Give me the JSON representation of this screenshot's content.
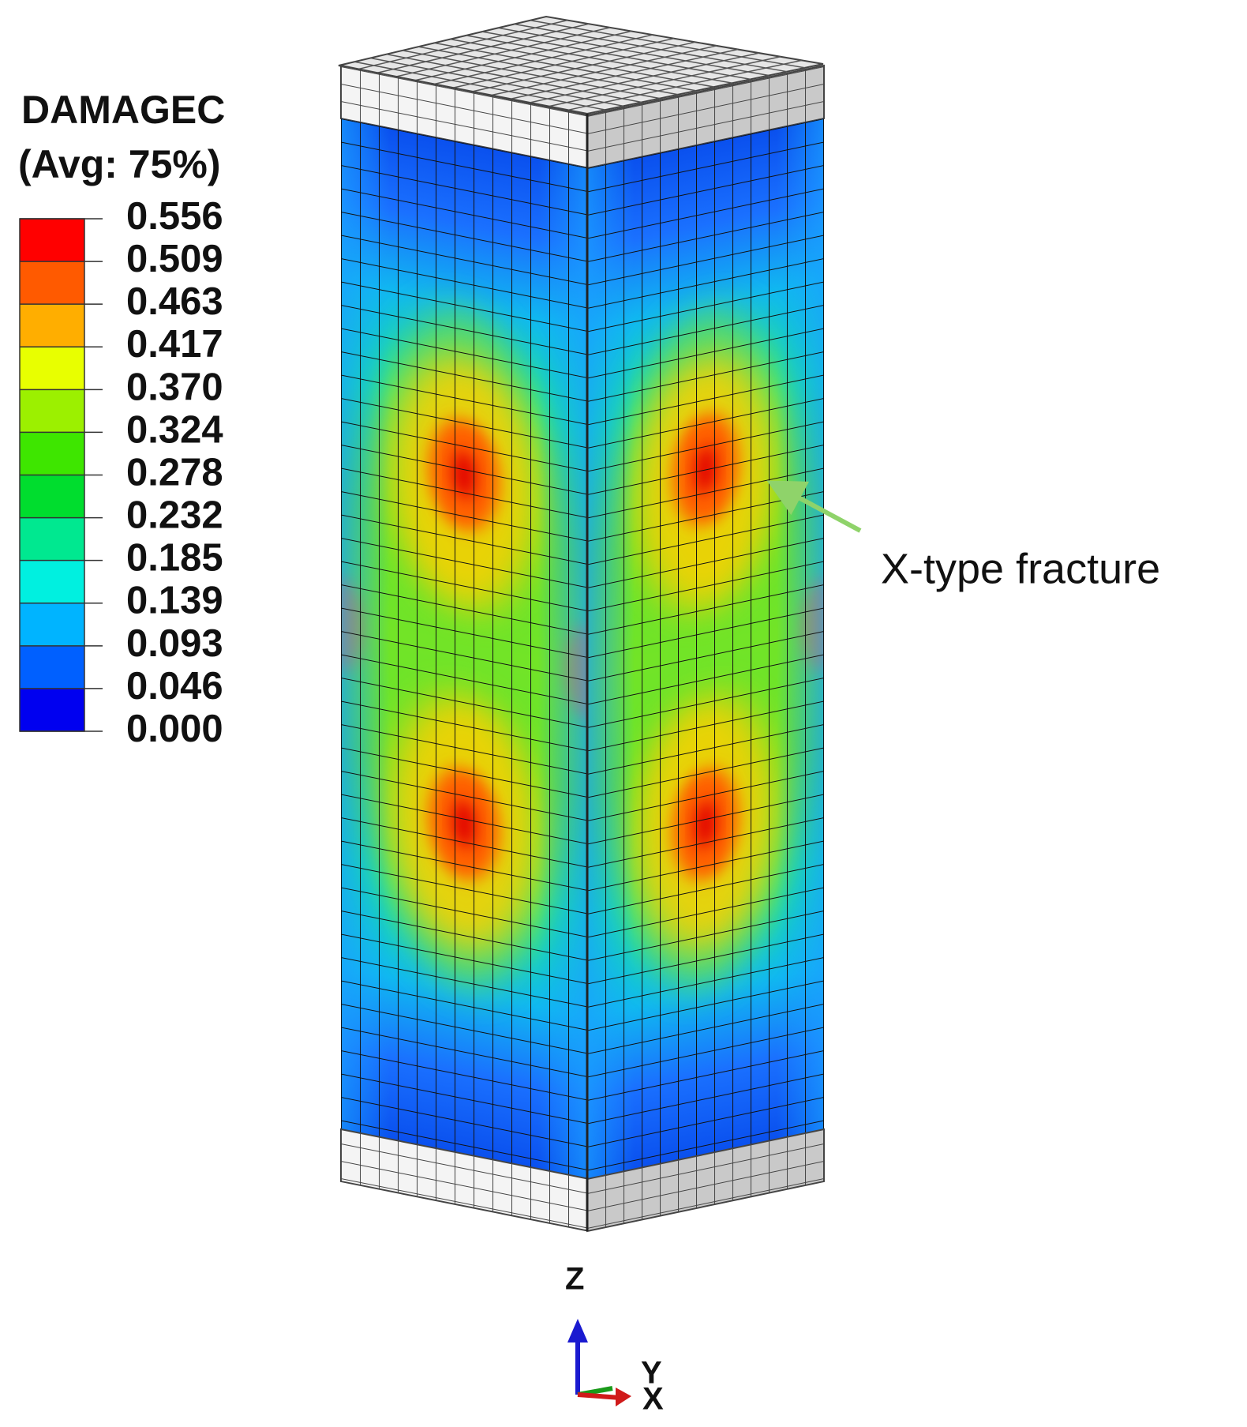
{
  "legend": {
    "title": "DAMAGEC",
    "subtitle": "(Avg: 75%)",
    "levels": [
      "0.556",
      "0.509",
      "0.463",
      "0.417",
      "0.370",
      "0.324",
      "0.278",
      "0.232",
      "0.185",
      "0.139",
      "0.093",
      "0.046",
      "0.000"
    ],
    "colors": [
      "#ff0000",
      "#ff5a00",
      "#ffae00",
      "#e8ff00",
      "#9cf000",
      "#3ee600",
      "#00dd2e",
      "#00e890",
      "#00f0e0",
      "#00b4ff",
      "#0060ff",
      "#0000f0"
    ]
  },
  "annotation": "X-type fracture",
  "axes": {
    "z": "Z",
    "y": "Y",
    "x": "X"
  }
}
